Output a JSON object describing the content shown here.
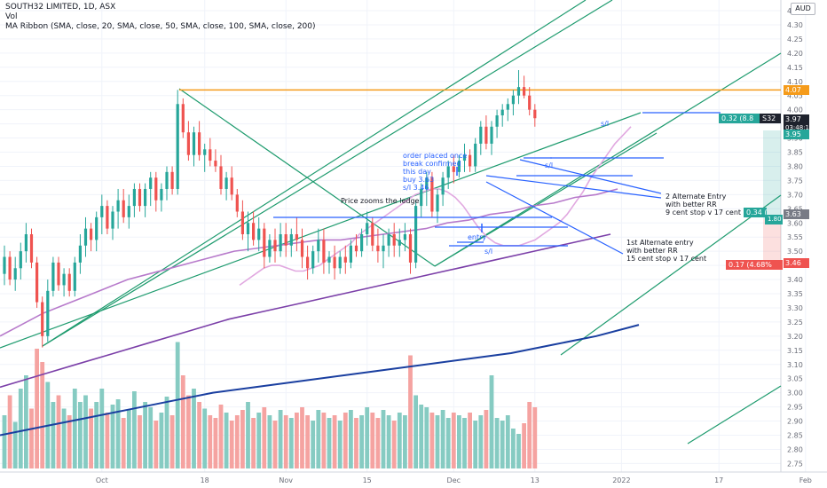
{
  "header": {
    "symbol_line": "SOUTH32 LIMITED, 1D, ASX",
    "vol_line": "Vol",
    "ribbon_line": "MA Ribbon (SMA, close, 20, SMA, close, 50, SMA, close, 100, SMA, close, 200)",
    "currency": "AUD"
  },
  "price_badges": {
    "orange": "4.07",
    "dark": "3.97",
    "countdown": "03:48:16",
    "green": "3.95",
    "gray": "3.63",
    "red": "3.46"
  },
  "position_labels": {
    "upper": "0.32 (8.8",
    "upper_suffix": "S32",
    "middle_a": "0.34 (",
    "middle_b": "1.80",
    "lower": "0.17 (4.68%"
  },
  "annotations": [
    "order placed once",
    "break confirmed",
    "this day",
    "buy 3.63",
    "s/l 3.46",
    "Price zooms the ledge",
    "entry",
    "s/l",
    "s/l",
    "s/l",
    "2 Alternate Entry",
    "with better RR",
    "9 cent stop v 17 cent",
    "1st Alternate entry",
    "with better RR",
    "15 cent stop v 17 cent"
  ],
  "chart_data": {
    "type": "candlestick",
    "title": "SOUTH32 LIMITED, 1D, ASX",
    "ylim": [
      2.72,
      4.4
    ],
    "yticks": [
      2.75,
      2.8,
      2.85,
      2.9,
      2.95,
      3.0,
      3.05,
      3.1,
      3.15,
      3.2,
      3.25,
      3.3,
      3.35,
      3.4,
      3.45,
      3.5,
      3.55,
      3.6,
      3.65,
      3.7,
      3.75,
      3.8,
      3.85,
      3.9,
      3.95,
      4.0,
      4.05,
      4.1,
      4.15,
      4.2,
      4.25,
      4.3,
      4.35
    ],
    "ytick_labels": [
      "2.75",
      "2.80",
      "2.85",
      "2.90",
      "2.95",
      "3.00",
      "3.05",
      "3.10",
      "3.15",
      "3.20",
      "3.25",
      "3.30",
      "3.35",
      "3.40",
      "3.45",
      "3.50",
      "3.55",
      "3.60",
      "3.65",
      "3.70",
      "3.75",
      "3.80",
      "3.85",
      "3.90",
      "3.95",
      "4.00",
      "4.05",
      "4.10",
      "4.15",
      "4.20",
      "4.25",
      "4.30",
      "4.35"
    ],
    "xticks": [
      "Oct",
      "18",
      "Nov",
      "15",
      "Dec",
      "13",
      "2022",
      "17",
      "Feb"
    ],
    "xtick_index": [
      18,
      37,
      52,
      67,
      83,
      98,
      114,
      132,
      148
    ],
    "candles": [
      [
        3.42,
        3.52,
        3.38,
        3.48
      ],
      [
        3.48,
        3.5,
        3.38,
        3.4
      ],
      [
        3.4,
        3.48,
        3.36,
        3.44
      ],
      [
        3.44,
        3.53,
        3.4,
        3.5
      ],
      [
        3.5,
        3.6,
        3.46,
        3.56
      ],
      [
        3.56,
        3.58,
        3.44,
        3.46
      ],
      [
        3.46,
        3.48,
        3.3,
        3.32
      ],
      [
        3.32,
        3.34,
        3.16,
        3.2
      ],
      [
        3.2,
        3.4,
        3.18,
        3.36
      ],
      [
        3.36,
        3.48,
        3.34,
        3.46
      ],
      [
        3.46,
        3.48,
        3.36,
        3.38
      ],
      [
        3.38,
        3.44,
        3.34,
        3.42
      ],
      [
        3.42,
        3.44,
        3.34,
        3.36
      ],
      [
        3.36,
        3.48,
        3.34,
        3.46
      ],
      [
        3.46,
        3.56,
        3.42,
        3.52
      ],
      [
        3.52,
        3.62,
        3.48,
        3.58
      ],
      [
        3.58,
        3.6,
        3.5,
        3.54
      ],
      [
        3.54,
        3.64,
        3.5,
        3.62
      ],
      [
        3.62,
        3.7,
        3.56,
        3.66
      ],
      [
        3.66,
        3.68,
        3.56,
        3.58
      ],
      [
        3.58,
        3.66,
        3.54,
        3.64
      ],
      [
        3.64,
        3.72,
        3.58,
        3.68
      ],
      [
        3.68,
        3.72,
        3.6,
        3.62
      ],
      [
        3.62,
        3.7,
        3.58,
        3.66
      ],
      [
        3.66,
        3.74,
        3.62,
        3.72
      ],
      [
        3.72,
        3.74,
        3.64,
        3.66
      ],
      [
        3.66,
        3.74,
        3.62,
        3.72
      ],
      [
        3.72,
        3.78,
        3.66,
        3.76
      ],
      [
        3.76,
        3.78,
        3.64,
        3.68
      ],
      [
        3.68,
        3.74,
        3.64,
        3.72
      ],
      [
        3.72,
        3.8,
        3.68,
        3.78
      ],
      [
        3.78,
        3.8,
        3.7,
        3.72
      ],
      [
        3.72,
        4.07,
        3.7,
        4.02
      ],
      [
        4.02,
        4.04,
        3.9,
        3.92
      ],
      [
        3.92,
        3.96,
        3.82,
        3.84
      ],
      [
        3.84,
        3.94,
        3.8,
        3.92
      ],
      [
        3.92,
        3.96,
        3.82,
        3.84
      ],
      [
        3.84,
        3.88,
        3.78,
        3.86
      ],
      [
        3.86,
        3.9,
        3.8,
        3.82
      ],
      [
        3.82,
        3.86,
        3.78,
        3.8
      ],
      [
        3.8,
        3.84,
        3.7,
        3.72
      ],
      [
        3.72,
        3.78,
        3.68,
        3.76
      ],
      [
        3.76,
        3.8,
        3.68,
        3.7
      ],
      [
        3.7,
        3.72,
        3.62,
        3.64
      ],
      [
        3.64,
        3.68,
        3.54,
        3.56
      ],
      [
        3.56,
        3.64,
        3.5,
        3.6
      ],
      [
        3.6,
        3.64,
        3.52,
        3.54
      ],
      [
        3.54,
        3.62,
        3.5,
        3.58
      ],
      [
        3.58,
        3.6,
        3.44,
        3.48
      ],
      [
        3.48,
        3.56,
        3.46,
        3.54
      ],
      [
        3.54,
        3.58,
        3.46,
        3.5
      ],
      [
        3.5,
        3.6,
        3.48,
        3.56
      ],
      [
        3.56,
        3.6,
        3.48,
        3.52
      ],
      [
        3.52,
        3.58,
        3.48,
        3.56
      ],
      [
        3.56,
        3.62,
        3.5,
        3.54
      ],
      [
        3.54,
        3.58,
        3.44,
        3.48
      ],
      [
        3.48,
        3.52,
        3.4,
        3.44
      ],
      [
        3.44,
        3.52,
        3.42,
        3.5
      ],
      [
        3.5,
        3.58,
        3.46,
        3.54
      ],
      [
        3.54,
        3.58,
        3.42,
        3.46
      ],
      [
        3.46,
        3.5,
        3.42,
        3.48
      ],
      [
        3.48,
        3.52,
        3.4,
        3.44
      ],
      [
        3.44,
        3.5,
        3.42,
        3.48
      ],
      [
        3.48,
        3.52,
        3.42,
        3.46
      ],
      [
        3.46,
        3.54,
        3.44,
        3.52
      ],
      [
        3.52,
        3.56,
        3.48,
        3.5
      ],
      [
        3.5,
        3.58,
        3.48,
        3.56
      ],
      [
        3.56,
        3.64,
        3.52,
        3.6
      ],
      [
        3.6,
        3.62,
        3.5,
        3.52
      ],
      [
        3.52,
        3.58,
        3.46,
        3.5
      ],
      [
        3.5,
        3.56,
        3.44,
        3.52
      ],
      [
        3.52,
        3.58,
        3.48,
        3.56
      ],
      [
        3.56,
        3.6,
        3.48,
        3.52
      ],
      [
        3.52,
        3.58,
        3.48,
        3.54
      ],
      [
        3.54,
        3.6,
        3.5,
        3.56
      ],
      [
        3.56,
        3.58,
        3.42,
        3.46
      ],
      [
        3.46,
        3.68,
        3.44,
        3.66
      ],
      [
        3.66,
        3.74,
        3.62,
        3.72
      ],
      [
        3.72,
        3.78,
        3.66,
        3.76
      ],
      [
        3.76,
        3.78,
        3.62,
        3.64
      ],
      [
        3.64,
        3.72,
        3.6,
        3.7
      ],
      [
        3.7,
        3.78,
        3.66,
        3.76
      ],
      [
        3.76,
        3.82,
        3.72,
        3.8
      ],
      [
        3.8,
        3.84,
        3.74,
        3.78
      ],
      [
        3.78,
        3.84,
        3.76,
        3.82
      ],
      [
        3.82,
        3.88,
        3.78,
        3.84
      ],
      [
        3.84,
        3.86,
        3.78,
        3.8
      ],
      [
        3.8,
        3.9,
        3.78,
        3.88
      ],
      [
        3.88,
        3.96,
        3.84,
        3.94
      ],
      [
        3.94,
        3.98,
        3.86,
        3.88
      ],
      [
        3.88,
        3.96,
        3.84,
        3.94
      ],
      [
        3.94,
        4.0,
        3.9,
        3.98
      ],
      [
        3.98,
        4.02,
        3.94,
        4.0
      ],
      [
        4.0,
        4.04,
        3.96,
        4.02
      ],
      [
        4.02,
        4.07,
        3.98,
        4.05
      ],
      [
        4.05,
        4.14,
        4.02,
        4.08
      ],
      [
        4.08,
        4.12,
        4.04,
        4.05
      ],
      [
        4.05,
        4.08,
        3.98,
        4.0
      ],
      [
        4.0,
        4.02,
        3.94,
        3.97
      ]
    ],
    "volumes": [
      0.4,
      0.55,
      0.35,
      0.6,
      0.7,
      0.45,
      0.9,
      0.8,
      0.65,
      0.5,
      0.55,
      0.45,
      0.4,
      0.6,
      0.5,
      0.55,
      0.45,
      0.5,
      0.6,
      0.42,
      0.48,
      0.52,
      0.38,
      0.44,
      0.58,
      0.4,
      0.5,
      0.46,
      0.36,
      0.42,
      0.54,
      0.4,
      0.95,
      0.7,
      0.55,
      0.6,
      0.5,
      0.45,
      0.4,
      0.38,
      0.48,
      0.42,
      0.36,
      0.4,
      0.44,
      0.5,
      0.38,
      0.42,
      0.46,
      0.4,
      0.36,
      0.44,
      0.4,
      0.38,
      0.42,
      0.46,
      0.4,
      0.36,
      0.44,
      0.42,
      0.38,
      0.4,
      0.36,
      0.42,
      0.44,
      0.38,
      0.4,
      0.46,
      0.42,
      0.38,
      0.44,
      0.4,
      0.36,
      0.42,
      0.4,
      0.85,
      0.55,
      0.48,
      0.46,
      0.42,
      0.4,
      0.44,
      0.38,
      0.42,
      0.4,
      0.38,
      0.42,
      0.36,
      0.4,
      0.44,
      0.7,
      0.38,
      0.36,
      0.4,
      0.3,
      0.26,
      0.34,
      0.5,
      0.46,
      0.22
    ],
    "ma_series": [
      {
        "name": "SMA 20",
        "color": "#e1a8e0",
        "values": [
          3.38,
          3.4,
          3.42,
          3.44,
          3.45,
          3.45,
          3.44,
          3.43,
          3.43,
          3.44,
          3.45,
          3.47,
          3.49,
          3.51,
          3.53,
          3.56,
          3.58,
          3.6,
          3.62,
          3.64,
          3.66,
          3.68,
          3.7,
          3.71,
          3.72,
          3.72,
          3.71,
          3.69,
          3.66,
          3.62,
          3.58,
          3.55,
          3.53,
          3.52,
          3.52,
          3.52,
          3.53,
          3.54,
          3.56,
          3.58,
          3.6,
          3.63,
          3.67,
          3.71,
          3.76,
          3.8,
          3.84,
          3.88,
          3.91,
          3.94
        ]
      },
      {
        "name": "SMA 50",
        "color": "#b77acb",
        "values": [
          3.2,
          3.24,
          3.28,
          3.31,
          3.34,
          3.37,
          3.4,
          3.42,
          3.44,
          3.46,
          3.48,
          3.5,
          3.51,
          3.52,
          3.53,
          3.54,
          3.54,
          3.55,
          3.56,
          3.57,
          3.58,
          3.6,
          3.61,
          3.63,
          3.64,
          3.66,
          3.67,
          3.69,
          3.7,
          3.72
        ]
      },
      {
        "name": "SMA 100",
        "color": "#7b3fa8",
        "values": [
          3.02,
          3.06,
          3.1,
          3.14,
          3.18,
          3.22,
          3.26,
          3.29,
          3.32,
          3.35,
          3.38,
          3.41,
          3.44,
          3.47,
          3.5,
          3.53,
          3.56
        ]
      },
      {
        "name": "SMA 200",
        "color": "#1a3fa0",
        "values": [
          2.85,
          2.88,
          2.91,
          2.94,
          2.97,
          3.0,
          3.02,
          3.04,
          3.06,
          3.08,
          3.1,
          3.12,
          3.14,
          3.17,
          3.2,
          3.24
        ]
      }
    ],
    "horizontal_levels": [
      4.07,
      3.63,
      3.46
    ]
  }
}
